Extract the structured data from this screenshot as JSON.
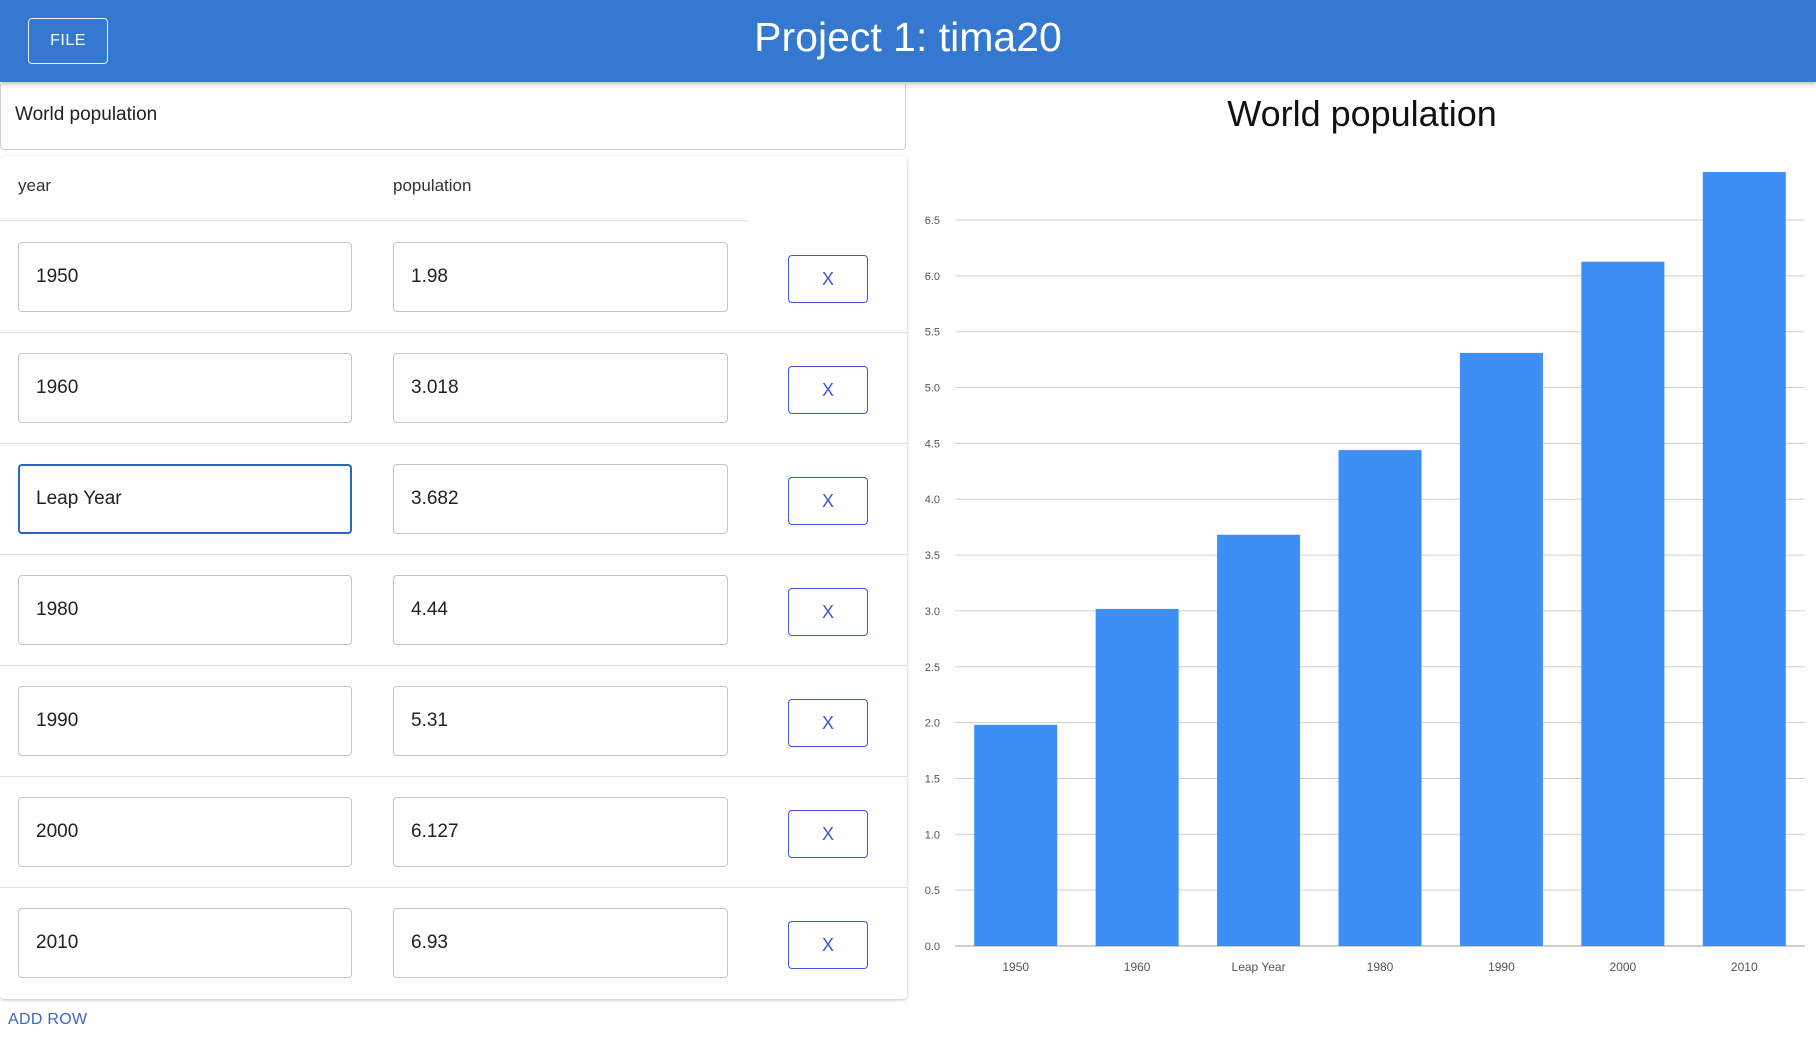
{
  "appbar": {
    "file_label": "FILE",
    "title": "Project 1: tima20"
  },
  "editor": {
    "chart_title_value": "World population",
    "columns": [
      "year",
      "population"
    ],
    "rows": [
      {
        "year": "1950",
        "population": "1.98",
        "delete_label": "X"
      },
      {
        "year": "1960",
        "population": "3.018",
        "delete_label": "X"
      },
      {
        "year": "Leap Year",
        "population": "3.682",
        "delete_label": "X"
      },
      {
        "year": "1980",
        "population": "4.44",
        "delete_label": "X"
      },
      {
        "year": "1990",
        "population": "5.31",
        "delete_label": "X"
      },
      {
        "year": "2000",
        "population": "6.127",
        "delete_label": "X"
      },
      {
        "year": "2010",
        "population": "6.93",
        "delete_label": "X"
      }
    ],
    "add_row_label": "ADD ROW",
    "focused_field": "rows.2.year"
  },
  "colors": {
    "appbar": "#3478d0",
    "bar": "#3d8ef5",
    "accent": "#3a58d8",
    "focus": "#2a66c6"
  },
  "chart_data": {
    "type": "bar",
    "title": "World population",
    "categories": [
      "1950",
      "1960",
      "Leap Year",
      "1980",
      "1990",
      "2000",
      "2010"
    ],
    "values": [
      1.98,
      3.018,
      3.682,
      4.44,
      5.31,
      6.127,
      6.93
    ],
    "yticks": [
      "0.0",
      "0.5",
      "1.0",
      "1.5",
      "2.0",
      "2.5",
      "3.0",
      "3.5",
      "4.0",
      "4.5",
      "5.0",
      "5.5",
      "6.0",
      "6.5"
    ],
    "ylim": [
      0,
      6.93
    ],
    "grid": true,
    "legend": "none",
    "xlabel": "",
    "ylabel": ""
  }
}
